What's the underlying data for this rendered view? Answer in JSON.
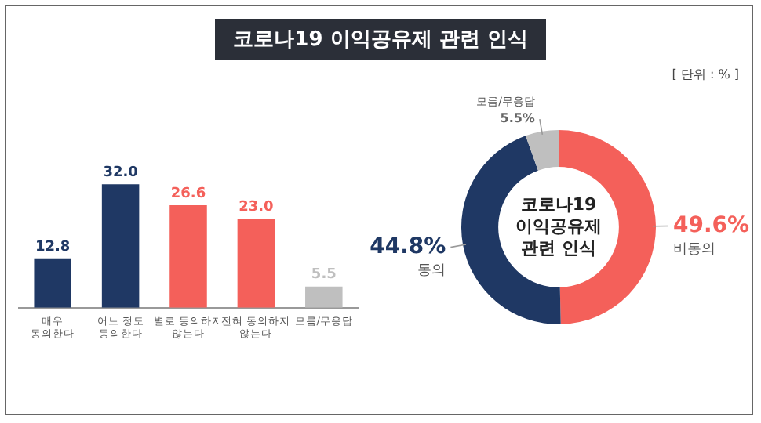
{
  "chart_data": [
    {
      "type": "bar",
      "title": "코로나19 이익공유제 관련 인식",
      "annotations": [
        "[ 단위 : % ]"
      ],
      "categories": [
        "매우 동의한다",
        "어느 정도 동의한다",
        "별로 동의하지 않는다",
        "전혀 동의하지 않는다",
        "모름/무응답"
      ],
      "values": [
        12.8,
        32.0,
        26.6,
        23.0,
        5.5
      ],
      "colors": [
        "#1f3864",
        "#1f3864",
        "#f4605a",
        "#f4605a",
        "#bfbfbf"
      ],
      "value_labels": [
        "12.8",
        "32.0",
        "26.6",
        "23.0",
        "5.5"
      ],
      "grid": false,
      "legend": false
    },
    {
      "type": "donut",
      "annotations": [
        "코로나19 이익공유제 관련 인식"
      ],
      "categories": [
        "비동의",
        "동의",
        "모름/무응답"
      ],
      "values": [
        49.6,
        44.8,
        5.5
      ],
      "colors": [
        "#f4605a",
        "#1f3864",
        "#bfbfbf"
      ],
      "value_labels": [
        "49.6%",
        "44.8%",
        "5.5%"
      ],
      "legend": false
    }
  ]
}
